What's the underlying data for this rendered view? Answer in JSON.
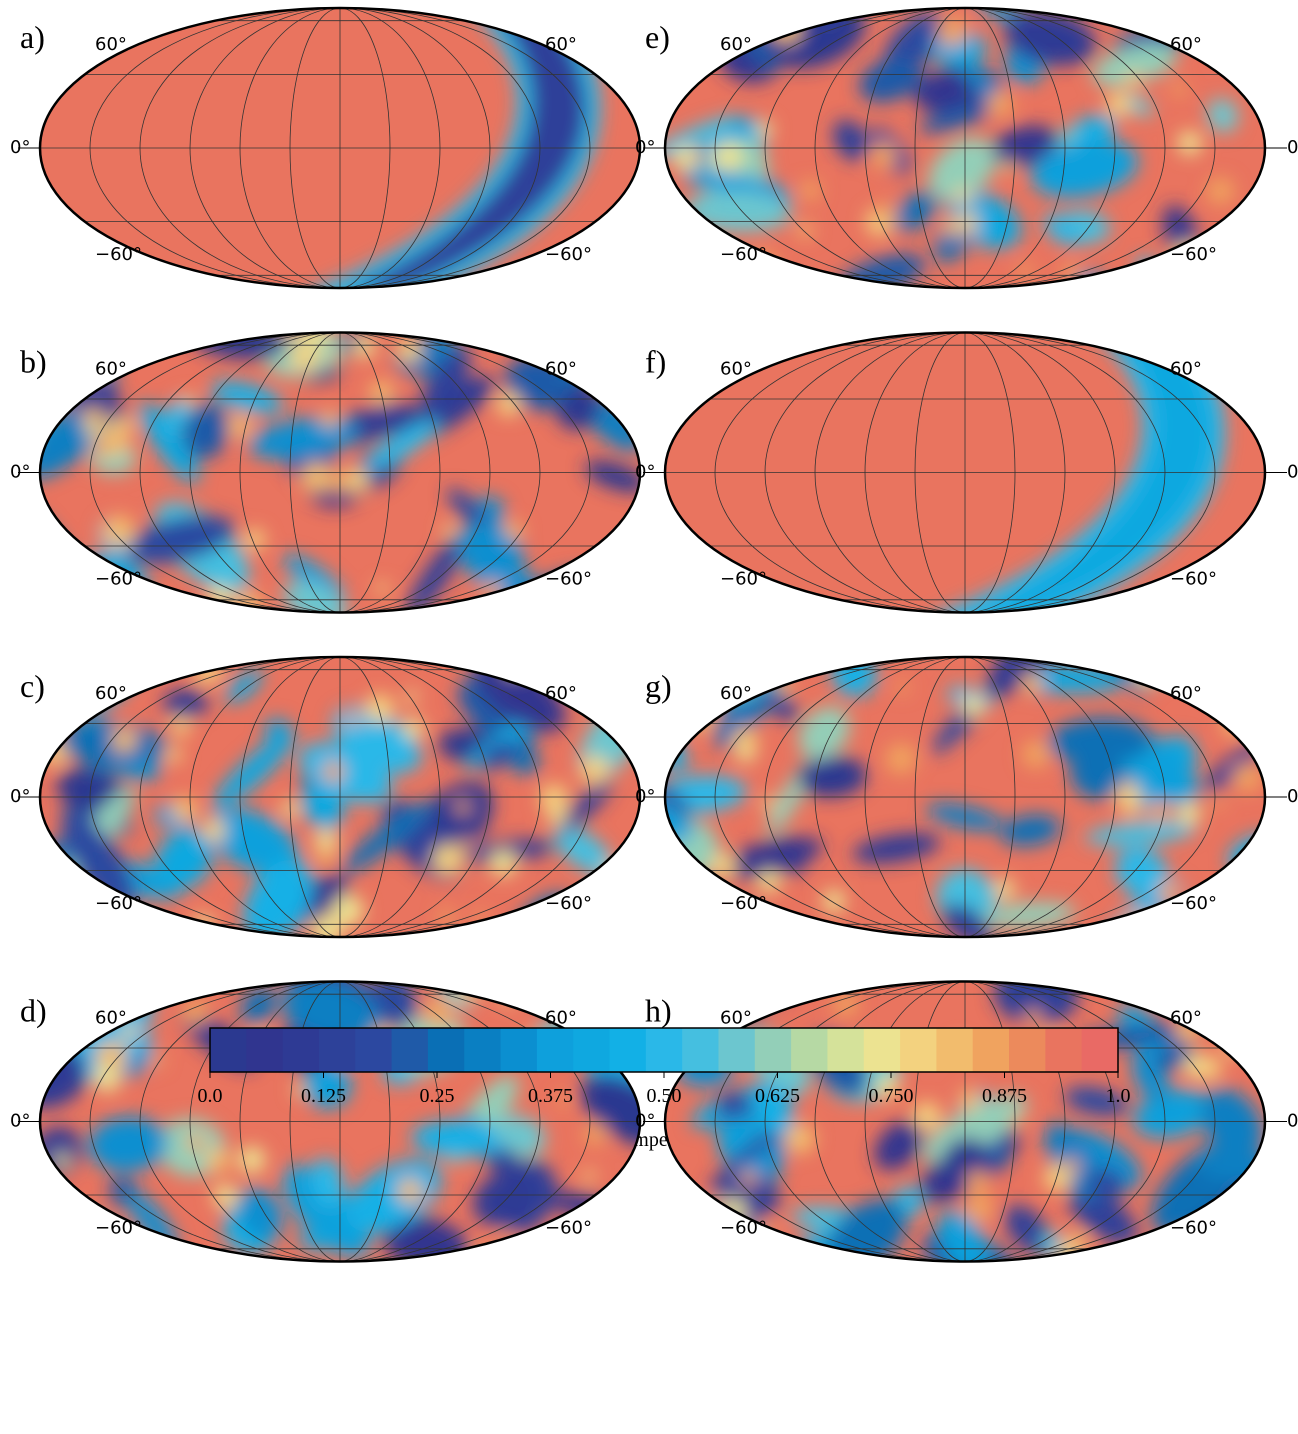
{
  "panels": [
    {
      "label": "a)"
    },
    {
      "label": "b)"
    },
    {
      "label": "c)"
    },
    {
      "label": "d)"
    },
    {
      "label": "e)"
    },
    {
      "label": "f)"
    },
    {
      "label": "g)"
    },
    {
      "label": "h)"
    }
  ],
  "lat_labels": {
    "north": "60°",
    "equator": "0°",
    "south": "−60°"
  },
  "colorbar": {
    "label": "Temperature",
    "colors": [
      "#2b3990",
      "#30358f",
      "#2e3a94",
      "#2d4199",
      "#2c48a0",
      "#1f5aa8",
      "#0a6fb5",
      "#0a7fc2",
      "#0b8fd0",
      "#0ea0dc",
      "#0fa8e0",
      "#12b0e6",
      "#2ab8e8",
      "#45bfe0",
      "#6cc6cf",
      "#93cfb8",
      "#b6d9a4",
      "#d5e29a",
      "#ece391",
      "#f3d27f",
      "#f2bc6d",
      "#f0a35f",
      "#ec8a5c",
      "#e9745f",
      "#e96a65"
    ],
    "lim": [
      0,
      1
    ],
    "ticks": [
      {
        "value": 0,
        "label": "0.0"
      },
      0.125,
      0.25,
      0.375,
      {
        "value": 0.5,
        "label": "0.50"
      },
      0.625,
      {
        "value": 0.75,
        "label": "0.750"
      },
      0.875,
      {
        "value": 1,
        "label": "1.0"
      }
    ]
  }
}
